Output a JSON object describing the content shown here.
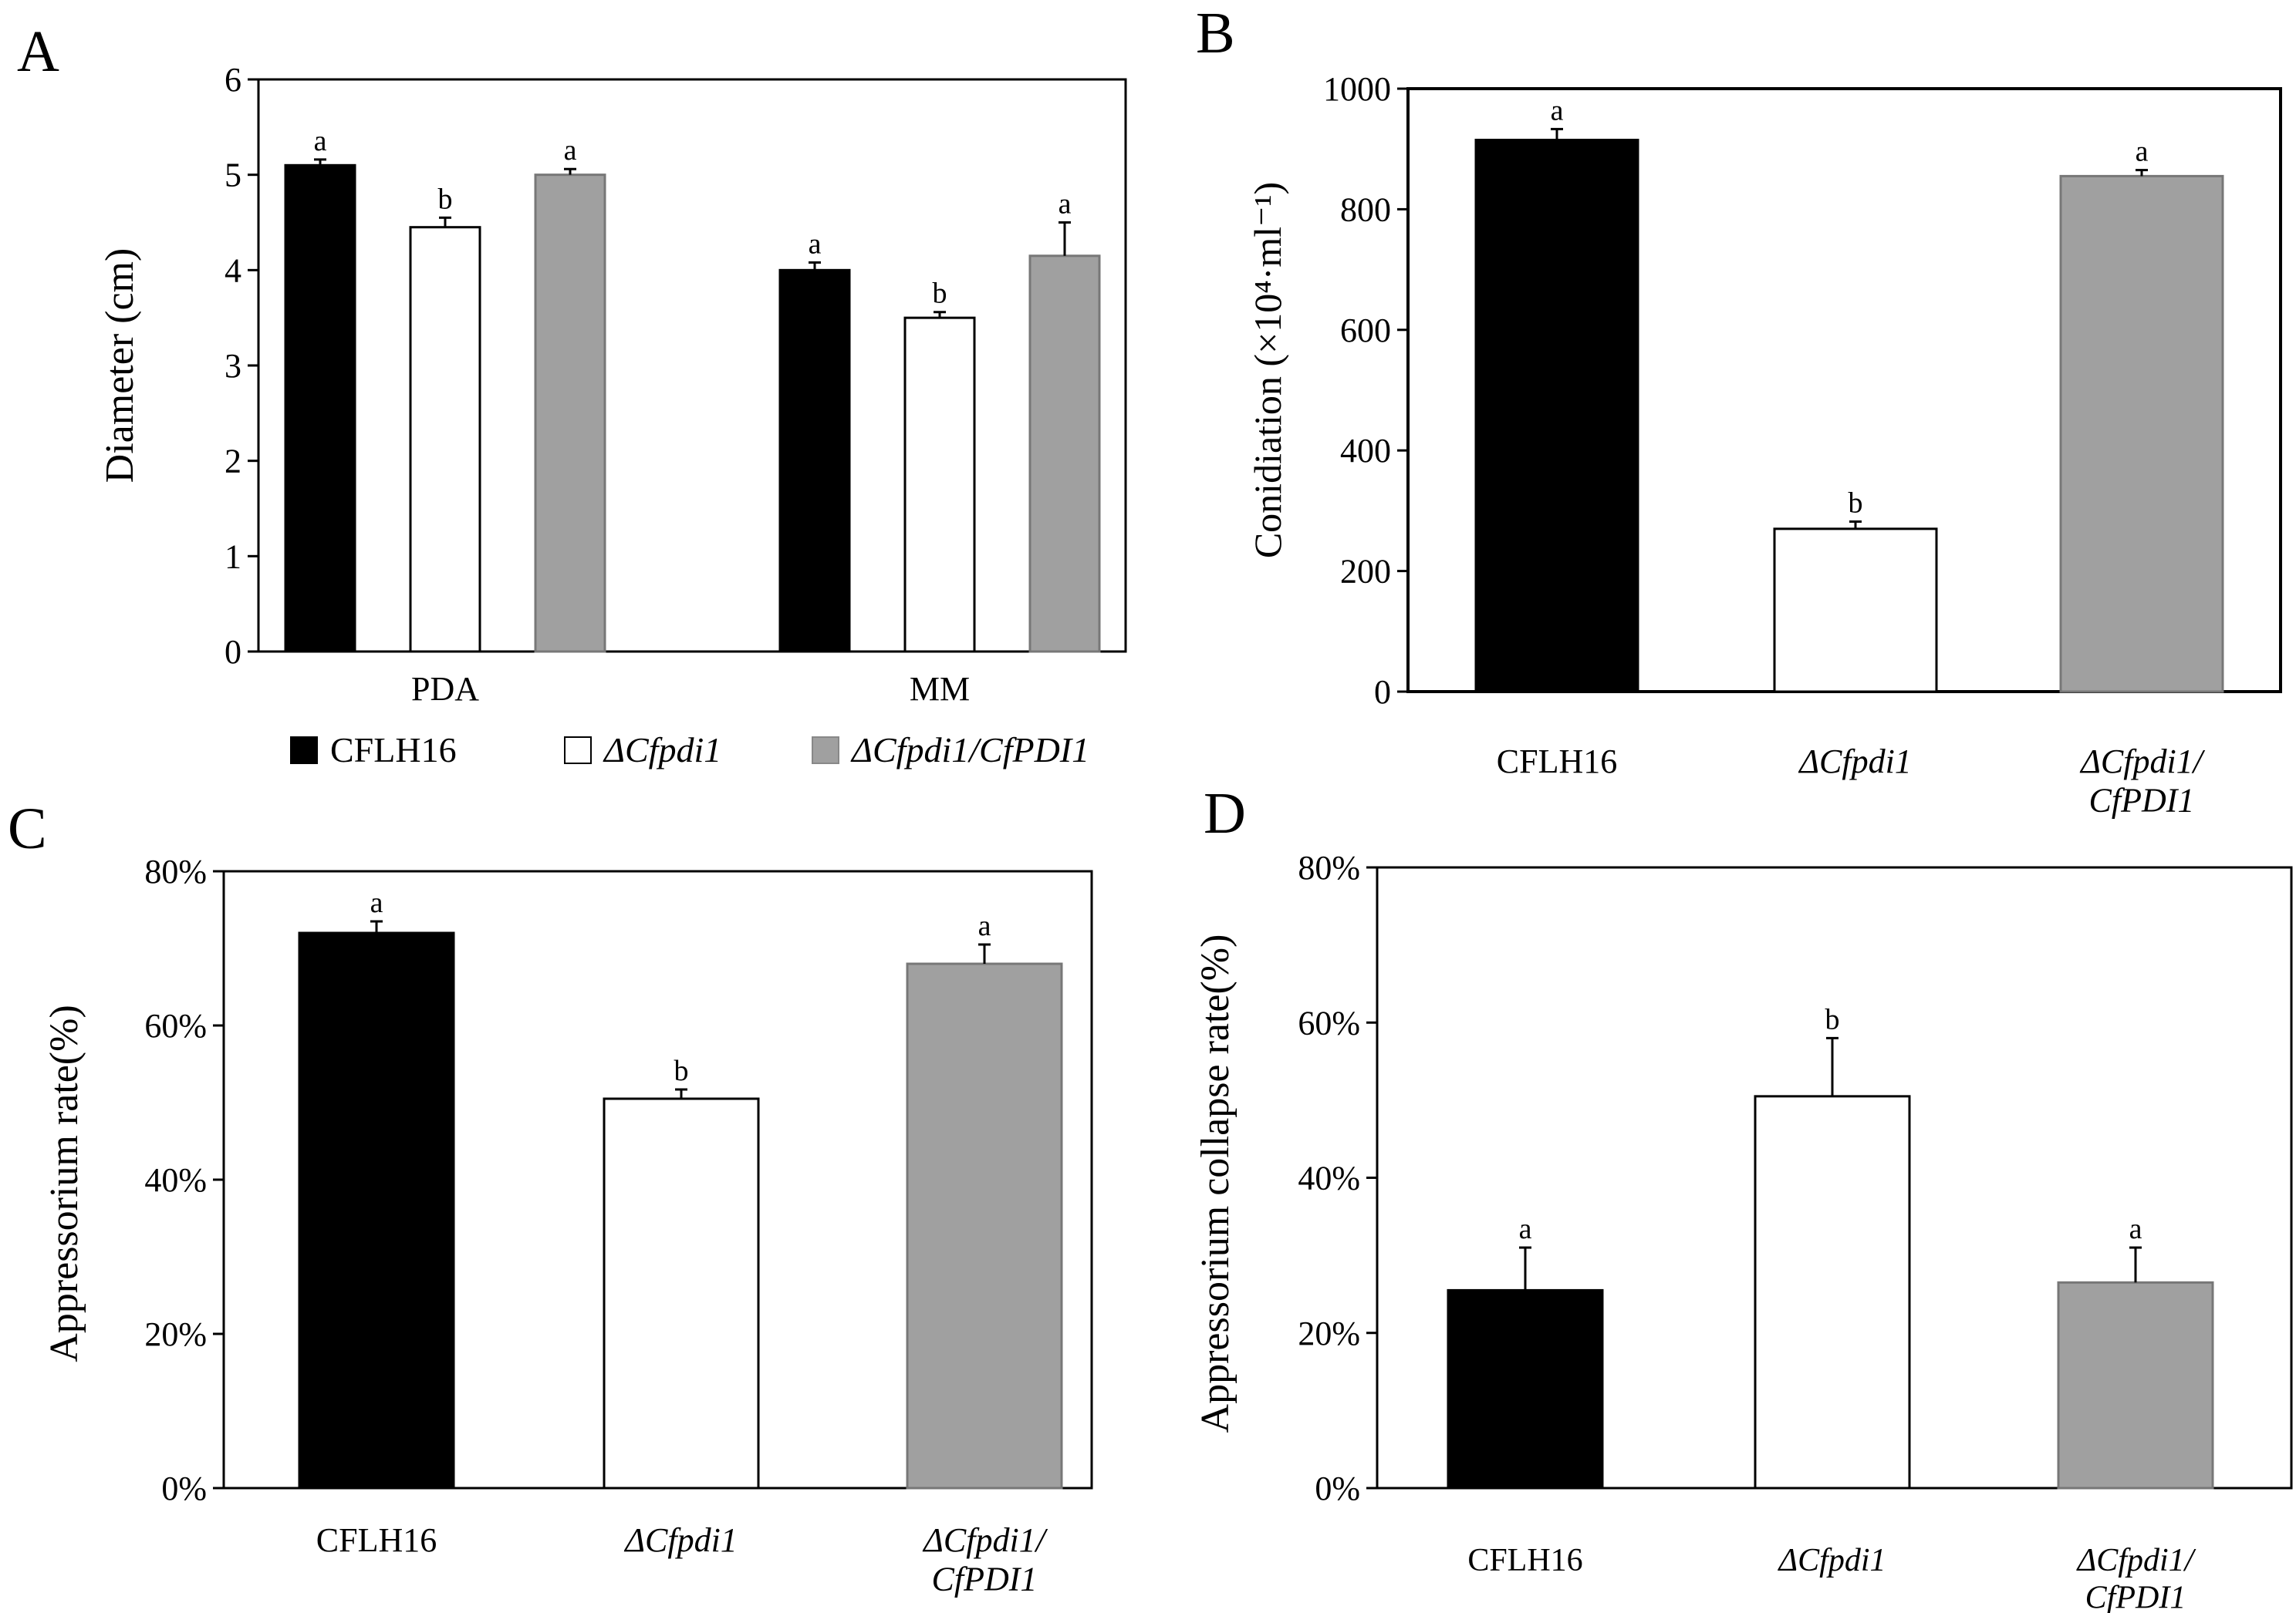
{
  "figure": {
    "panels": [
      "A",
      "B",
      "C",
      "D"
    ],
    "legend": [
      {
        "name": "CFLH16",
        "color": "#000000"
      },
      {
        "name": "ΔCfpdi1",
        "color": "#ffffff"
      },
      {
        "name": "ΔCfpdi1/CfPDI1",
        "color": "#a0a0a0"
      }
    ]
  },
  "chart_data": [
    {
      "panel": "A",
      "type": "bar",
      "ylabel": "Diameter (cm)",
      "ylim": [
        0,
        6
      ],
      "yticks": [
        0,
        1,
        2,
        3,
        4,
        5,
        6
      ],
      "categories": [
        "PDA",
        "MM"
      ],
      "series": [
        {
          "name": "CFLH16",
          "values": [
            5.1,
            4.0
          ],
          "errors": [
            0.06,
            0.08
          ],
          "letters": [
            "a",
            "a"
          ]
        },
        {
          "name": "ΔCfpdi1",
          "values": [
            4.45,
            3.5
          ],
          "errors": [
            0.1,
            0.06
          ],
          "letters": [
            "b",
            "b"
          ]
        },
        {
          "name": "ΔCfpdi1/CfPDI1",
          "values": [
            5.0,
            4.15
          ],
          "errors": [
            0.06,
            0.35
          ],
          "letters": [
            "a",
            "a"
          ]
        }
      ]
    },
    {
      "panel": "B",
      "type": "bar",
      "ylabel": "Conidiation (×10⁴·ml⁻¹)",
      "ylim": [
        0,
        1000
      ],
      "yticks": [
        0,
        200,
        400,
        600,
        800,
        1000
      ],
      "categories": [
        "CFLH16",
        "ΔCfpdi1",
        "ΔCfpdi1/ CfPDI1"
      ],
      "values": [
        915,
        270,
        855
      ],
      "errors": [
        18,
        12,
        10
      ],
      "letters": [
        "a",
        "b",
        "a"
      ]
    },
    {
      "panel": "C",
      "type": "bar",
      "ylabel": "Appressorium rate(%)",
      "ylim": [
        0,
        80
      ],
      "yticks": [
        "0%",
        "20%",
        "40%",
        "60%",
        "80%"
      ],
      "categories": [
        "CFLH16",
        "ΔCfpdi1",
        "ΔCfpdi1/ CfPDI1"
      ],
      "values": [
        72,
        50.5,
        68
      ],
      "errors": [
        1.5,
        1.2,
        2.5
      ],
      "letters": [
        "a",
        "b",
        "a"
      ]
    },
    {
      "panel": "D",
      "type": "bar",
      "ylabel": "Appressorium collapse rate(%)",
      "ylim": [
        0,
        80
      ],
      "yticks": [
        "0%",
        "20%",
        "40%",
        "60%",
        "80%"
      ],
      "categories": [
        "CFLH16",
        "ΔCfpdi1",
        "ΔCfpdi1/ CfPDI1"
      ],
      "values": [
        25.5,
        50.5,
        26.5
      ],
      "errors": [
        5.5,
        7.5,
        4.5
      ],
      "letters": [
        "a",
        "b",
        "a"
      ]
    }
  ]
}
